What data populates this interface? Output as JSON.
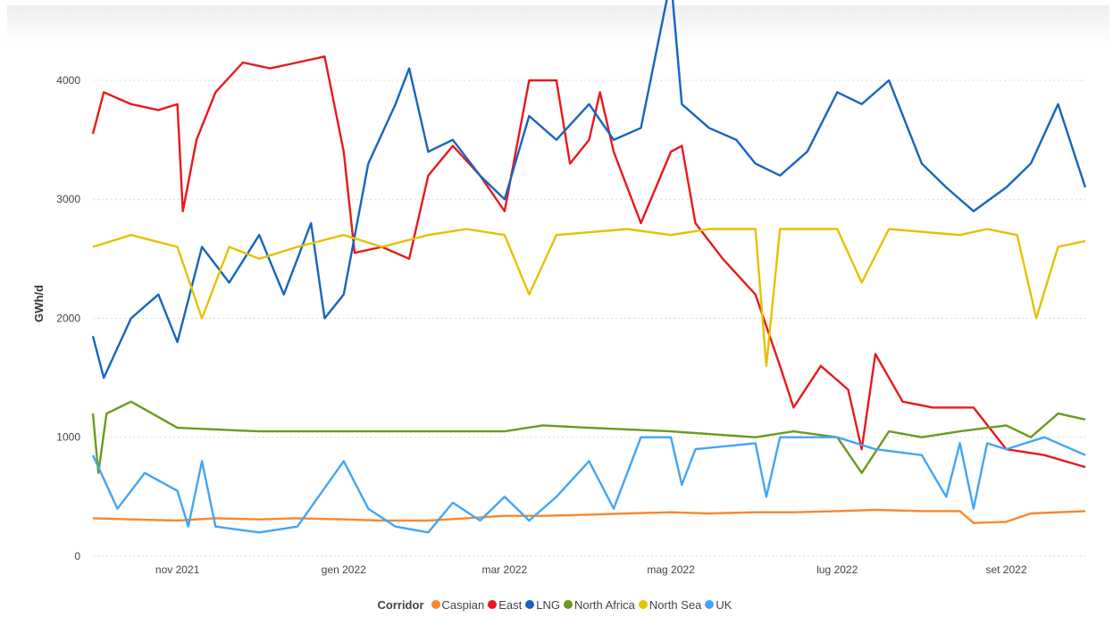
{
  "chart_data": {
    "type": "line",
    "ylabel": "GWh/d",
    "xlabel": "",
    "title": "",
    "ylim": [
      0,
      4600
    ],
    "yticks": [
      0,
      1000,
      2000,
      3000,
      4000
    ],
    "ytick_labels": [
      "0",
      "1000",
      "2000",
      "3000",
      "4000"
    ],
    "x_range": [
      "2021-10-01",
      "2022-09-30"
    ],
    "xticks": [
      "2021-11-01",
      "2022-01-01",
      "2022-03-01",
      "2022-05-01",
      "2022-07-01",
      "2022-09-01"
    ],
    "xtick_labels": [
      "nov 2021",
      "gen 2022",
      "mar 2022",
      "mag 2022",
      "lug 2022",
      "set 2022"
    ],
    "grid": "horizontal dotted",
    "legend_position": "bottom",
    "legend_title": "Corridor",
    "series": [
      {
        "name": "Caspian",
        "color": "#F7882F",
        "points": [
          [
            "2021-10-01",
            320
          ],
          [
            "2021-10-15",
            310
          ],
          [
            "2021-11-01",
            300
          ],
          [
            "2021-11-15",
            320
          ],
          [
            "2021-12-01",
            310
          ],
          [
            "2021-12-15",
            320
          ],
          [
            "2022-01-01",
            310
          ],
          [
            "2022-01-15",
            300
          ],
          [
            "2022-02-01",
            300
          ],
          [
            "2022-02-15",
            320
          ],
          [
            "2022-03-01",
            340
          ],
          [
            "2022-03-15",
            340
          ],
          [
            "2022-04-01",
            350
          ],
          [
            "2022-04-15",
            360
          ],
          [
            "2022-05-01",
            370
          ],
          [
            "2022-05-15",
            360
          ],
          [
            "2022-06-01",
            370
          ],
          [
            "2022-06-15",
            370
          ],
          [
            "2022-07-01",
            380
          ],
          [
            "2022-07-15",
            390
          ],
          [
            "2022-08-01",
            380
          ],
          [
            "2022-08-15",
            380
          ],
          [
            "2022-08-20",
            280
          ],
          [
            "2022-09-01",
            290
          ],
          [
            "2022-09-10",
            360
          ],
          [
            "2022-09-30",
            380
          ]
        ]
      },
      {
        "name": "East",
        "color": "#E8191B",
        "points": [
          [
            "2021-10-01",
            3550
          ],
          [
            "2021-10-05",
            3900
          ],
          [
            "2021-10-15",
            3800
          ],
          [
            "2021-10-25",
            3750
          ],
          [
            "2021-11-01",
            3800
          ],
          [
            "2021-11-03",
            2900
          ],
          [
            "2021-11-08",
            3500
          ],
          [
            "2021-11-15",
            3900
          ],
          [
            "2021-11-25",
            4150
          ],
          [
            "2021-12-05",
            4100
          ],
          [
            "2021-12-15",
            4150
          ],
          [
            "2021-12-25",
            4200
          ],
          [
            "2022-01-01",
            3400
          ],
          [
            "2022-01-05",
            2550
          ],
          [
            "2022-01-15",
            2600
          ],
          [
            "2022-01-25",
            2500
          ],
          [
            "2022-02-01",
            3200
          ],
          [
            "2022-02-10",
            3450
          ],
          [
            "2022-02-20",
            3200
          ],
          [
            "2022-03-01",
            2900
          ],
          [
            "2022-03-10",
            4000
          ],
          [
            "2022-03-20",
            4000
          ],
          [
            "2022-03-25",
            3300
          ],
          [
            "2022-04-01",
            3500
          ],
          [
            "2022-04-05",
            3900
          ],
          [
            "2022-04-10",
            3400
          ],
          [
            "2022-04-20",
            2800
          ],
          [
            "2022-05-01",
            3400
          ],
          [
            "2022-05-05",
            3450
          ],
          [
            "2022-05-10",
            2800
          ],
          [
            "2022-05-20",
            2500
          ],
          [
            "2022-06-01",
            2200
          ],
          [
            "2022-06-10",
            1600
          ],
          [
            "2022-06-15",
            1250
          ],
          [
            "2022-06-25",
            1600
          ],
          [
            "2022-07-05",
            1400
          ],
          [
            "2022-07-10",
            900
          ],
          [
            "2022-07-15",
            1700
          ],
          [
            "2022-07-25",
            1300
          ],
          [
            "2022-08-05",
            1250
          ],
          [
            "2022-08-20",
            1250
          ],
          [
            "2022-09-01",
            900
          ],
          [
            "2022-09-15",
            850
          ],
          [
            "2022-09-30",
            750
          ]
        ]
      },
      {
        "name": "LNG",
        "color": "#1565C0",
        "points": [
          [
            "2021-10-01",
            1850
          ],
          [
            "2021-10-05",
            1500
          ],
          [
            "2021-10-15",
            2000
          ],
          [
            "2021-10-25",
            2200
          ],
          [
            "2021-11-01",
            1800
          ],
          [
            "2021-11-10",
            2600
          ],
          [
            "2021-11-20",
            2300
          ],
          [
            "2021-12-01",
            2700
          ],
          [
            "2021-12-10",
            2200
          ],
          [
            "2021-12-20",
            2800
          ],
          [
            "2021-12-25",
            2000
          ],
          [
            "2022-01-01",
            2200
          ],
          [
            "2022-01-10",
            3300
          ],
          [
            "2022-01-20",
            3800
          ],
          [
            "2022-01-25",
            4100
          ],
          [
            "2022-02-01",
            3400
          ],
          [
            "2022-02-10",
            3500
          ],
          [
            "2022-02-20",
            3200
          ],
          [
            "2022-03-01",
            3000
          ],
          [
            "2022-03-10",
            3700
          ],
          [
            "2022-03-20",
            3500
          ],
          [
            "2022-04-01",
            3800
          ],
          [
            "2022-04-10",
            3500
          ],
          [
            "2022-04-20",
            3600
          ],
          [
            "2022-05-01",
            4850
          ],
          [
            "2022-05-05",
            3800
          ],
          [
            "2022-05-15",
            3600
          ],
          [
            "2022-05-25",
            3500
          ],
          [
            "2022-06-01",
            3300
          ],
          [
            "2022-06-10",
            3200
          ],
          [
            "2022-06-20",
            3400
          ],
          [
            "2022-07-01",
            3900
          ],
          [
            "2022-07-10",
            3800
          ],
          [
            "2022-07-20",
            4000
          ],
          [
            "2022-08-01",
            3300
          ],
          [
            "2022-08-10",
            3100
          ],
          [
            "2022-08-20",
            2900
          ],
          [
            "2022-09-01",
            3100
          ],
          [
            "2022-09-10",
            3300
          ],
          [
            "2022-09-20",
            3800
          ],
          [
            "2022-09-30",
            3100
          ]
        ]
      },
      {
        "name": "North Africa",
        "color": "#6B9A1E",
        "points": [
          [
            "2021-10-01",
            1200
          ],
          [
            "2021-10-03",
            700
          ],
          [
            "2021-10-06",
            1200
          ],
          [
            "2021-10-15",
            1300
          ],
          [
            "2021-11-01",
            1080
          ],
          [
            "2021-12-01",
            1050
          ],
          [
            "2022-01-01",
            1050
          ],
          [
            "2022-02-01",
            1050
          ],
          [
            "2022-03-01",
            1050
          ],
          [
            "2022-03-15",
            1100
          ],
          [
            "2022-04-01",
            1080
          ],
          [
            "2022-05-01",
            1050
          ],
          [
            "2022-06-01",
            1000
          ],
          [
            "2022-06-15",
            1050
          ],
          [
            "2022-07-01",
            1000
          ],
          [
            "2022-07-10",
            700
          ],
          [
            "2022-07-20",
            1050
          ],
          [
            "2022-08-01",
            1000
          ],
          [
            "2022-08-15",
            1050
          ],
          [
            "2022-09-01",
            1100
          ],
          [
            "2022-09-10",
            1000
          ],
          [
            "2022-09-20",
            1200
          ],
          [
            "2022-09-30",
            1150
          ]
        ]
      },
      {
        "name": "North Sea",
        "color": "#E5C100",
        "points": [
          [
            "2021-10-01",
            2600
          ],
          [
            "2021-10-15",
            2700
          ],
          [
            "2021-11-01",
            2600
          ],
          [
            "2021-11-10",
            2000
          ],
          [
            "2021-11-20",
            2600
          ],
          [
            "2021-12-01",
            2500
          ],
          [
            "2021-12-15",
            2600
          ],
          [
            "2022-01-01",
            2700
          ],
          [
            "2022-01-15",
            2600
          ],
          [
            "2022-02-01",
            2700
          ],
          [
            "2022-02-15",
            2750
          ],
          [
            "2022-03-01",
            2700
          ],
          [
            "2022-03-10",
            2200
          ],
          [
            "2022-03-20",
            2700
          ],
          [
            "2022-04-15",
            2750
          ],
          [
            "2022-05-01",
            2700
          ],
          [
            "2022-05-15",
            2750
          ],
          [
            "2022-06-01",
            2750
          ],
          [
            "2022-06-05",
            1600
          ],
          [
            "2022-06-10",
            2750
          ],
          [
            "2022-07-01",
            2750
          ],
          [
            "2022-07-10",
            2300
          ],
          [
            "2022-07-20",
            2750
          ],
          [
            "2022-08-15",
            2700
          ],
          [
            "2022-08-25",
            2750
          ],
          [
            "2022-09-05",
            2700
          ],
          [
            "2022-09-12",
            2000
          ],
          [
            "2022-09-20",
            2600
          ],
          [
            "2022-09-30",
            2650
          ]
        ]
      },
      {
        "name": "UK",
        "color": "#42A5F5",
        "points": [
          [
            "2021-10-01",
            850
          ],
          [
            "2021-10-10",
            400
          ],
          [
            "2021-10-20",
            700
          ],
          [
            "2021-11-01",
            550
          ],
          [
            "2021-11-05",
            250
          ],
          [
            "2021-11-10",
            800
          ],
          [
            "2021-11-15",
            250
          ],
          [
            "2021-12-01",
            200
          ],
          [
            "2021-12-15",
            250
          ],
          [
            "2022-01-01",
            800
          ],
          [
            "2022-01-10",
            400
          ],
          [
            "2022-01-20",
            250
          ],
          [
            "2022-02-01",
            200
          ],
          [
            "2022-02-10",
            450
          ],
          [
            "2022-02-20",
            300
          ],
          [
            "2022-03-01",
            500
          ],
          [
            "2022-03-10",
            300
          ],
          [
            "2022-03-20",
            500
          ],
          [
            "2022-04-01",
            800
          ],
          [
            "2022-04-10",
            400
          ],
          [
            "2022-04-20",
            1000
          ],
          [
            "2022-05-01",
            1000
          ],
          [
            "2022-05-05",
            600
          ],
          [
            "2022-05-10",
            900
          ],
          [
            "2022-06-01",
            950
          ],
          [
            "2022-06-05",
            500
          ],
          [
            "2022-06-10",
            1000
          ],
          [
            "2022-07-01",
            1000
          ],
          [
            "2022-07-15",
            900
          ],
          [
            "2022-08-01",
            850
          ],
          [
            "2022-08-10",
            500
          ],
          [
            "2022-08-15",
            950
          ],
          [
            "2022-08-20",
            400
          ],
          [
            "2022-08-25",
            950
          ],
          [
            "2022-09-01",
            900
          ],
          [
            "2022-09-15",
            1000
          ],
          [
            "2022-09-30",
            850
          ]
        ]
      }
    ]
  }
}
